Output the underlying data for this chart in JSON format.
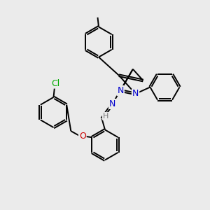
{
  "background_color": "#ebebeb",
  "bond_color": "#000000",
  "N_color": "#0000cc",
  "O_color": "#cc0000",
  "Cl_color": "#00aa00",
  "H_color": "#777777",
  "lw": 1.4,
  "figsize": [
    3.0,
    3.0
  ],
  "dpi": 100,
  "xlim": [
    0,
    10
  ],
  "ylim": [
    0,
    10
  ]
}
